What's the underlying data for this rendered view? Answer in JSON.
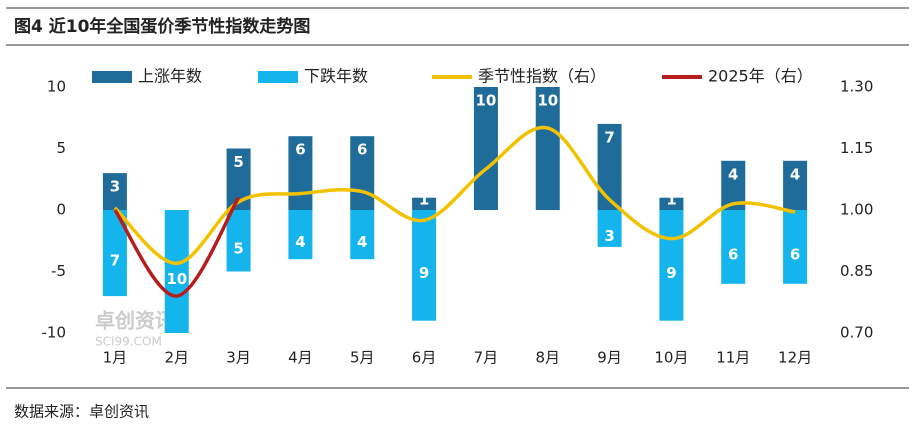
{
  "title": "图4 近10年全国蛋价季节性指数走势图",
  "source": "数据来源：卓创资讯",
  "watermark": [
    "卓创资讯",
    "SCI99.COM"
  ],
  "chart_data": {
    "type": "bar-line",
    "categories": [
      "1月",
      "2月",
      "3月",
      "4月",
      "5月",
      "6月",
      "7月",
      "8月",
      "9月",
      "10月",
      "11月",
      "12月"
    ],
    "ylim": [
      -10,
      10
    ],
    "yticks": [
      -10,
      -5,
      0,
      5,
      10
    ],
    "y2lim": [
      0.7,
      1.3
    ],
    "y2ticks": [
      {
        "value": 0.7,
        "label": "0.70"
      },
      {
        "value": 0.85,
        "label": "0.85"
      },
      {
        "value": 1.0,
        "label": "1.00"
      },
      {
        "value": 1.15,
        "label": "1.15"
      },
      {
        "value": 1.3,
        "label": "1.30"
      }
    ],
    "legend": "top",
    "series": [
      {
        "name": "上涨年数",
        "type": "bar",
        "color": "#1f6b9a",
        "values": [
          3,
          0,
          5,
          6,
          6,
          1,
          10,
          10,
          7,
          1,
          4,
          4
        ],
        "value_labels": [
          "3",
          null,
          "5",
          "6",
          "6",
          "1",
          "10",
          "10",
          "7",
          "1",
          "4",
          "4"
        ]
      },
      {
        "name": "下跌年数",
        "type": "bar",
        "color": "#14b4ec",
        "values": [
          -7,
          -10,
          -5,
          -4,
          -4,
          -9,
          0,
          0,
          -3,
          -9,
          -6,
          -6
        ],
        "value_labels": [
          "7",
          "10",
          "5",
          "4",
          "4",
          "9",
          null,
          null,
          "3",
          "9",
          "6",
          "6"
        ]
      },
      {
        "name": "季节性指数（右）",
        "type": "line",
        "axis": "y2",
        "color": "#f2c200",
        "values": [
          1.005,
          0.87,
          1.02,
          1.04,
          1.045,
          0.975,
          1.1,
          1.2,
          1.025,
          0.93,
          1.015,
          0.995
        ]
      },
      {
        "name": "2025年（右）",
        "type": "line",
        "axis": "y2",
        "color": "#b81c1c",
        "values": [
          1.0,
          0.79,
          1.03,
          null,
          null,
          null,
          null,
          null,
          null,
          null,
          null,
          null
        ]
      }
    ]
  }
}
